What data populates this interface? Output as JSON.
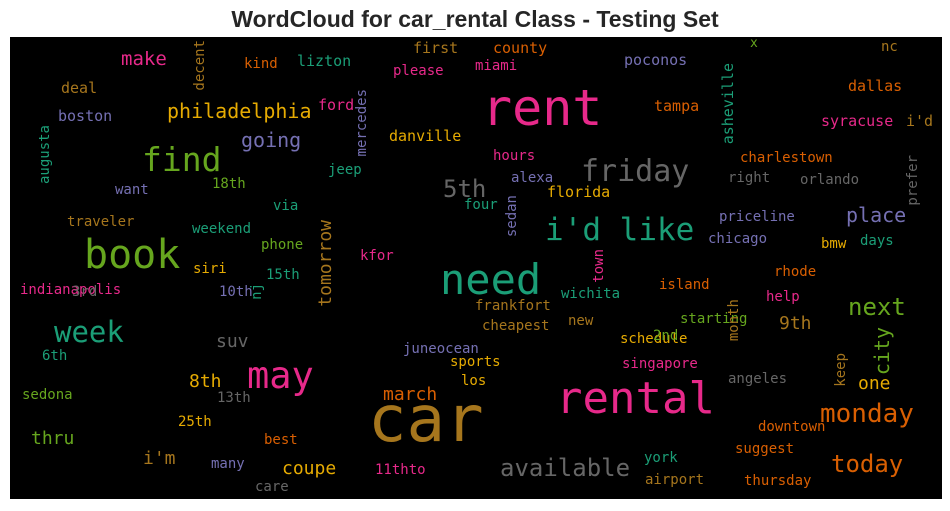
{
  "title": "WordCloud for car_rental Class - Testing Set",
  "colors": {
    "pink": "#e7298a",
    "green": "#1b9e77",
    "lime": "#66a61e",
    "orange": "#d95f02",
    "gold": "#e6ab02",
    "purple": "#7570b3",
    "brown": "#a6761d",
    "gray": "#666666"
  },
  "words": [
    "rent",
    "car",
    "rental",
    "need",
    "book",
    "may",
    "find",
    "i'd like",
    "friday",
    "week",
    "monday",
    "today",
    "available",
    "5th",
    "philadelphia",
    "next",
    "going",
    "place",
    "make",
    "city",
    "march",
    "coupe",
    "thru",
    "i'm",
    "tomorrow",
    "one",
    "9th",
    "8th",
    "suv",
    "decent",
    "lizton",
    "kind",
    "first",
    "county",
    "please",
    "miami",
    "poconos",
    "nc",
    "x",
    "asheville",
    "dallas",
    "deal",
    "boston",
    "ford",
    "mercedes",
    "tampa",
    "syracuse",
    "i'd",
    "augusta",
    "danville",
    "hours",
    "charlestown",
    "prefer",
    "jeep",
    "alexa",
    "right",
    "orlando",
    "want",
    "18th",
    "florida",
    "four",
    "sedan",
    "traveler",
    "via",
    "weekend",
    "priceline",
    "days",
    "chicago",
    "bmw",
    "phone",
    "kfor",
    "15th",
    "siri",
    "rhode",
    "indianapolis",
    "3rd",
    "10th",
    "nj",
    "wichita",
    "town",
    "island",
    "help",
    "frankfort",
    "new",
    "starting",
    "cheapest",
    "6th",
    "schedule",
    "2nd",
    "juneocean",
    "sports",
    "singapore",
    "sedona",
    "los",
    "angeles",
    "month",
    "keep",
    "13th",
    "25th",
    "downtown",
    "best",
    "suggest",
    "many",
    "york",
    "11thto",
    "care",
    "airport",
    "thursday"
  ]
}
